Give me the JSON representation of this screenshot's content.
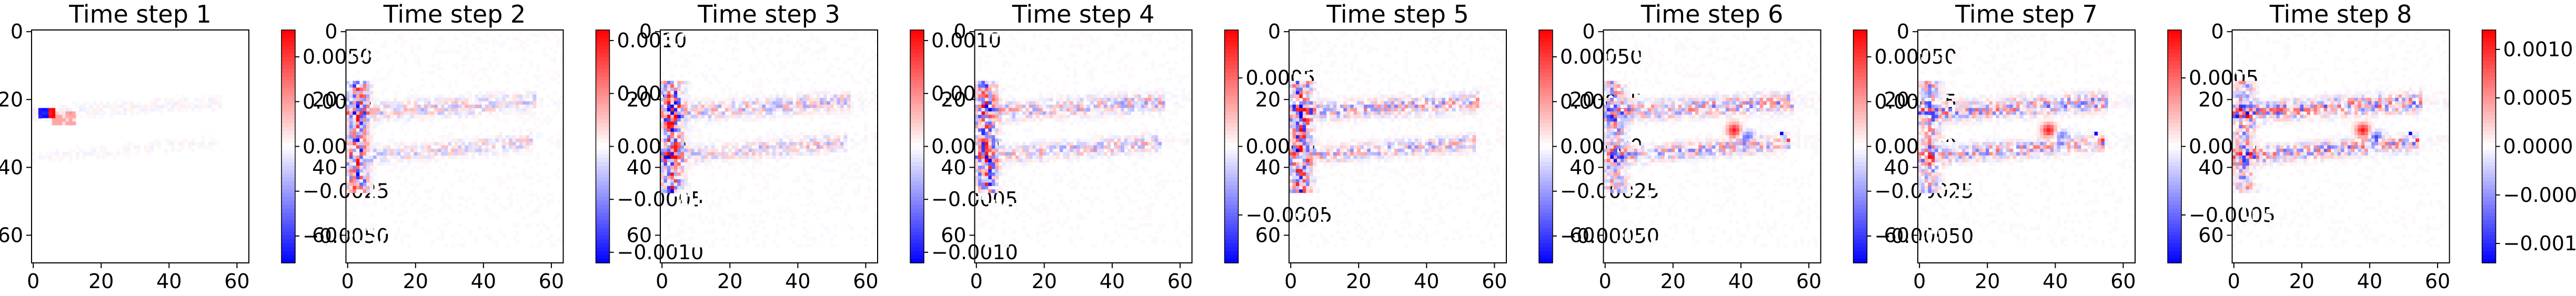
{
  "chart_data": [
    {
      "type": "heatmap",
      "title": "Time step 1",
      "x_ticks": [
        0,
        20,
        40,
        60
      ],
      "y_ticks": [
        0,
        20,
        40,
        60
      ],
      "grid_size": 64,
      "colormap": "bwr",
      "vmin": -0.0065,
      "vmax": 0.0065,
      "colorbar_ticks": [
        "0.0050",
        "0.0025",
        "0.0000",
        "−0.0025",
        "−0.0050"
      ],
      "colorbar_values": [
        0.005,
        0.0025,
        0,
        -0.0025,
        -0.005
      ]
    },
    {
      "type": "heatmap",
      "title": "Time step 2",
      "x_ticks": [
        0,
        20,
        40,
        60
      ],
      "y_ticks": [
        0,
        20,
        40,
        60
      ],
      "grid_size": 64,
      "colormap": "bwr",
      "vmin": -0.0011,
      "vmax": 0.0011,
      "colorbar_ticks": [
        "0.0010",
        "0.0005",
        "0.0000",
        "−0.0005",
        "−0.0010"
      ],
      "colorbar_values": [
        0.001,
        0.0005,
        0,
        -0.0005,
        -0.001
      ]
    },
    {
      "type": "heatmap",
      "title": "Time step 3",
      "x_ticks": [
        0,
        20,
        40,
        60
      ],
      "y_ticks": [
        0,
        20,
        40,
        60
      ],
      "grid_size": 64,
      "colormap": "bwr",
      "vmin": -0.0011,
      "vmax": 0.0011,
      "colorbar_ticks": [
        "0.0010",
        "0.0005",
        "0.0000",
        "−0.0005",
        "−0.0010"
      ],
      "colorbar_values": [
        0.001,
        0.0005,
        0,
        -0.0005,
        -0.001
      ]
    },
    {
      "type": "heatmap",
      "title": "Time step 4",
      "x_ticks": [
        0,
        20,
        40,
        60
      ],
      "y_ticks": [
        0,
        20,
        40,
        60
      ],
      "grid_size": 64,
      "colormap": "bwr",
      "vmin": -0.00085,
      "vmax": 0.00085,
      "colorbar_ticks": [
        "0.0005",
        "0.0000",
        "−0.0005"
      ],
      "colorbar_values": [
        0.0005,
        0,
        -0.0005
      ]
    },
    {
      "type": "heatmap",
      "title": "Time step 5",
      "x_ticks": [
        0,
        20,
        40,
        60
      ],
      "y_ticks": [
        0,
        20,
        40,
        60
      ],
      "grid_size": 64,
      "colormap": "bwr",
      "vmin": -0.00065,
      "vmax": 0.00065,
      "colorbar_ticks": [
        "0.00050",
        "0.00025",
        "0.00000",
        "−0.00025",
        "−0.00050"
      ],
      "colorbar_values": [
        0.0005,
        0.00025,
        0,
        -0.00025,
        -0.0005
      ]
    },
    {
      "type": "heatmap",
      "title": "Time step 6",
      "x_ticks": [
        0,
        20,
        40,
        60
      ],
      "y_ticks": [
        0,
        20,
        40,
        60
      ],
      "grid_size": 64,
      "colormap": "bwr",
      "vmin": -0.00065,
      "vmax": 0.00065,
      "colorbar_ticks": [
        "0.00050",
        "0.00025",
        "0.00000",
        "−0.00025",
        "−0.00050"
      ],
      "colorbar_values": [
        0.0005,
        0.00025,
        0,
        -0.00025,
        -0.0005
      ]
    },
    {
      "type": "heatmap",
      "title": "Time step 7",
      "x_ticks": [
        0,
        20,
        40,
        60
      ],
      "y_ticks": [
        0,
        20,
        40,
        60
      ],
      "grid_size": 64,
      "colormap": "bwr",
      "vmin": -0.00085,
      "vmax": 0.00085,
      "colorbar_ticks": [
        "0.0005",
        "0.0000",
        "−0.0005"
      ],
      "colorbar_values": [
        0.0005,
        0,
        -0.0005
      ]
    },
    {
      "type": "heatmap",
      "title": "Time step 8",
      "x_ticks": [
        0,
        20,
        40,
        60
      ],
      "y_ticks": [
        0,
        20,
        40,
        60
      ],
      "grid_size": 64,
      "colormap": "bwr",
      "vmin": -0.0012,
      "vmax": 0.0012,
      "colorbar_ticks": [
        "0.0010",
        "0.0005",
        "0.0000",
        "−0.0005",
        "−0.0010"
      ],
      "colorbar_values": [
        0.001,
        0.0005,
        0,
        -0.0005,
        -0.001
      ]
    }
  ],
  "colors": {
    "negative": "#0000ff",
    "zero": "#ffffff",
    "positive": "#ff0000"
  }
}
